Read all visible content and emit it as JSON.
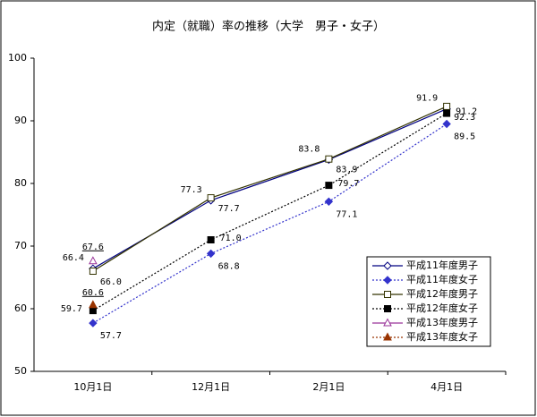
{
  "chart_data": {
    "type": "line",
    "title": "内定（就職）率の推移（大学　男子・女子）",
    "categories": [
      "10月1日",
      "12月1日",
      "2月1日",
      "4月1日"
    ],
    "ylim": [
      50,
      100
    ],
    "yticks": [
      50,
      60,
      70,
      80,
      90,
      100
    ],
    "legend": "lower right",
    "series": [
      {
        "name": "平成11年度男子",
        "color": "#000080",
        "marker": "diamond-open",
        "line_style": "solid",
        "values": [
          66.4,
          77.3,
          83.8,
          91.9
        ],
        "value_labels": [
          "66.4",
          "77.3",
          "83.8",
          "91.9"
        ]
      },
      {
        "name": "平成11年度女子",
        "color": "#3333cc",
        "marker": "diamond-filled",
        "line_style": "dotted",
        "values": [
          57.7,
          68.8,
          77.1,
          89.5
        ],
        "value_labels": [
          "57.7",
          "68.8",
          "77.1",
          "89.5"
        ]
      },
      {
        "name": "平成12年度男子",
        "color": "#333300",
        "marker": "square-open",
        "line_style": "solid",
        "values": [
          66.0,
          77.7,
          83.9,
          92.3
        ],
        "value_labels": [
          "66.0",
          "77.7",
          "83.9",
          "92.3"
        ]
      },
      {
        "name": "平成12年度女子",
        "color": "#000000",
        "marker": "square-filled",
        "line_style": "dotted",
        "values": [
          59.7,
          71.0,
          79.7,
          91.2
        ],
        "value_labels": [
          "59.7",
          "71.0",
          "79.7",
          "91.2"
        ]
      },
      {
        "name": "平成13年度男子",
        "color": "#993399",
        "marker": "triangle-open",
        "line_style": "solid",
        "values": [
          67.6,
          null,
          null,
          null
        ],
        "value_labels": [
          "67.6",
          null,
          null,
          null
        ]
      },
      {
        "name": "平成13年度女子",
        "color": "#993300",
        "marker": "triangle-filled",
        "line_style": "dotted",
        "values": [
          60.6,
          null,
          null,
          null
        ],
        "value_labels": [
          "60.6",
          null,
          null,
          null
        ]
      }
    ]
  }
}
